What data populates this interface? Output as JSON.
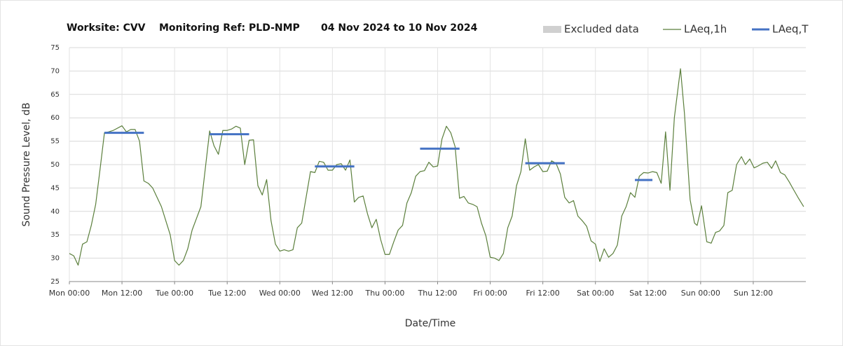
{
  "chart_data": {
    "type": "line",
    "title_parts": [
      "Worksite: CVV",
      "Monitoring Ref: PLD-NMP",
      "04 Nov 2024 to 10 Nov 2024"
    ],
    "y_label": "Sound Pressure Level, dB",
    "x_label": "Date/Time",
    "excluded_legend": {
      "name": "Excluded data",
      "color": "#d0d0d0"
    },
    "xlim": [
      0,
      168
    ],
    "xticks": [
      {
        "value": 0,
        "label": "Mon 00:00"
      },
      {
        "value": 12,
        "label": "Mon 12:00"
      },
      {
        "value": 24,
        "label": "Tue 00:00"
      },
      {
        "value": 36,
        "label": "Tue 12:00"
      },
      {
        "value": 48,
        "label": "Wed 00:00"
      },
      {
        "value": 60,
        "label": "Wed 12:00"
      },
      {
        "value": 72,
        "label": "Thu 00:00"
      },
      {
        "value": 84,
        "label": "Thu 12:00"
      },
      {
        "value": 96,
        "label": "Fri 00:00"
      },
      {
        "value": 108,
        "label": "Fri 12:00"
      },
      {
        "value": 120,
        "label": "Sat 00:00"
      },
      {
        "value": 132,
        "label": "Sat 12:00"
      },
      {
        "value": 144,
        "label": "Sun 00:00"
      },
      {
        "value": 156,
        "label": "Sun 12:00"
      }
    ],
    "ylim": [
      25,
      75
    ],
    "yticks": [
      25,
      30,
      35,
      40,
      45,
      50,
      55,
      60,
      65,
      70,
      75
    ],
    "grid": true,
    "series": [
      {
        "name": "LAeq,1h",
        "color": "#5b7f3c",
        "x": [
          0,
          1,
          2,
          3,
          4,
          5,
          6,
          7,
          8,
          9,
          10,
          12,
          13,
          14,
          15,
          16,
          17,
          18,
          19,
          20,
          21,
          22,
          23,
          24,
          25,
          26,
          27,
          28,
          29,
          30,
          32,
          33,
          34,
          35,
          36,
          37,
          38,
          39,
          40,
          41,
          42,
          43,
          44,
          45,
          46,
          47,
          48,
          49,
          50,
          51,
          52,
          53,
          54,
          55,
          56,
          57,
          58,
          59,
          60,
          61,
          62,
          63,
          64,
          65,
          66,
          67,
          68,
          69,
          70,
          71,
          72,
          73,
          74,
          75,
          76,
          77,
          78,
          79,
          80,
          81,
          82,
          83,
          84,
          85,
          86,
          87,
          88,
          89,
          90,
          91,
          92,
          93,
          94,
          95,
          96,
          97,
          98,
          99,
          100,
          101,
          102,
          103,
          104,
          105,
          106,
          107,
          108,
          109,
          110,
          111,
          112,
          113,
          114,
          115,
          116,
          117,
          118,
          119,
          120,
          121,
          122,
          123,
          124,
          125,
          126,
          127,
          128,
          129,
          130,
          131,
          132,
          133,
          134,
          135,
          136,
          137,
          138,
          139.4,
          140.3,
          141.6,
          142.6,
          143.2,
          144.2,
          145.4,
          146.4,
          147.4,
          148.3,
          149.3,
          150.2,
          151.2,
          152.2,
          153.3,
          154.2,
          155.2,
          156.2,
          157.1,
          158.2,
          159.2,
          160.2,
          161.1,
          162.2,
          163.2,
          164.2,
          165.1,
          166.2,
          167.5
        ],
        "values": [
          31,
          30.5,
          28.5,
          33,
          33.5,
          37,
          41.5,
          49,
          56.8,
          57,
          57.3,
          58.3,
          57,
          57.5,
          57.5,
          55,
          46.5,
          46,
          45,
          43,
          41,
          38,
          35,
          29.5,
          28.5,
          29.5,
          32,
          36,
          38.5,
          41,
          57.2,
          54,
          52.2,
          57.3,
          57.3,
          57.6,
          58.2,
          57.8,
          50,
          55.2,
          55.3,
          45.5,
          43.5,
          46.8,
          38,
          33,
          31.5,
          31.8,
          31.5,
          31.8,
          36.5,
          37.5,
          43,
          48.5,
          48.3,
          50.7,
          50.5,
          48.8,
          48.8,
          50,
          50.2,
          48.8,
          51,
          42,
          43,
          43.3,
          39.5,
          36.5,
          38.3,
          34,
          30.8,
          30.8,
          33.5,
          36,
          37,
          41.8,
          44,
          47.5,
          48.5,
          48.7,
          50.5,
          49.5,
          49.7,
          55.5,
          58.2,
          56.8,
          53.8,
          42.8,
          43.2,
          41.8,
          41.5,
          41,
          37.5,
          34.8,
          30.2,
          30,
          29.5,
          31,
          36.5,
          39,
          45.5,
          48.5,
          55.5,
          48.8,
          49.5,
          50,
          48.5,
          48.6,
          50.8,
          50.3,
          48,
          43,
          41.8,
          42.3,
          39,
          38,
          36.8,
          33.7,
          33,
          29.3,
          32,
          30.2,
          31,
          32.8,
          39,
          41,
          44,
          43,
          47.5,
          48.3,
          48.2,
          48.5,
          48.3,
          46,
          57,
          44.5,
          60,
          70.5,
          61,
          42.5,
          37.5,
          37,
          41.2,
          33.5,
          33.2,
          35.5,
          35.8,
          37,
          44,
          44.5,
          50,
          51.7,
          50,
          51.2,
          49.3,
          49.7,
          50.3,
          50.5,
          49.2,
          50.8,
          48.3,
          47.8,
          46.3,
          44.8,
          43,
          41
        ]
      },
      {
        "name": "LAeq,T",
        "color": "#4472c4",
        "segments": [
          {
            "x": [
              8,
              17
            ],
            "value": 56.8
          },
          {
            "x": [
              32,
              41
            ],
            "value": 56.5
          },
          {
            "x": [
              56,
              65
            ],
            "value": 49.6
          },
          {
            "x": [
              80,
              89
            ],
            "value": 53.4
          },
          {
            "x": [
              104,
              113
            ],
            "value": 50.3
          },
          {
            "x": [
              129,
              133
            ],
            "value": 46.7
          }
        ]
      }
    ]
  }
}
